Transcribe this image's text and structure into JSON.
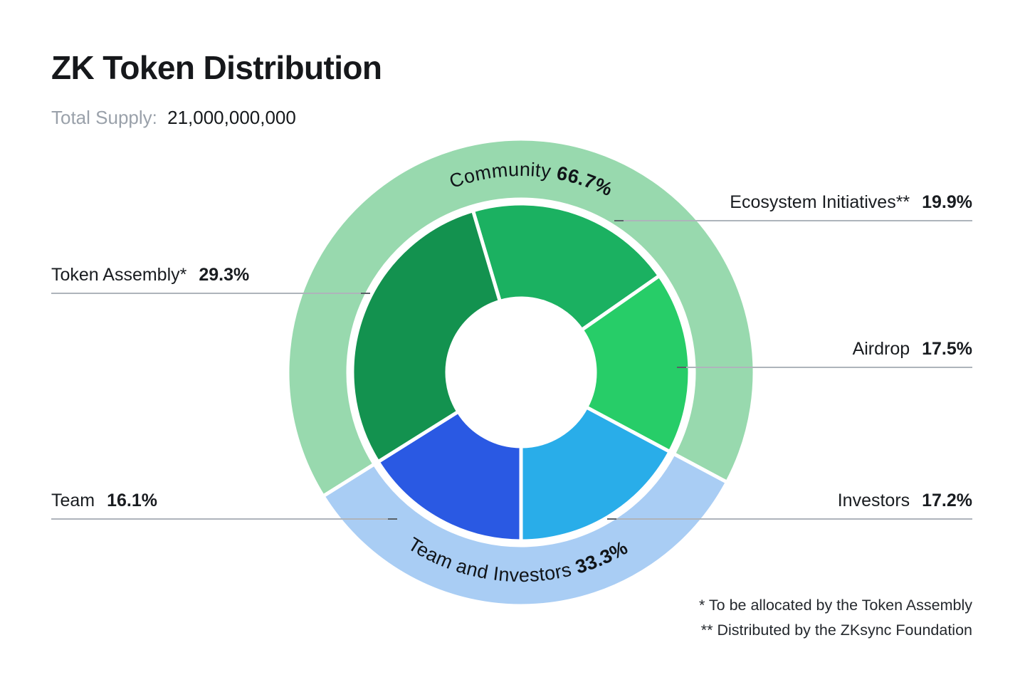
{
  "page": {
    "title": "ZK Token Distribution",
    "total_supply_label": "Total Supply:",
    "total_supply_value": "21,000,000,000"
  },
  "footnotes": {
    "line1": "* To be allocated by the Token Assembly",
    "line2": "** Distributed by the ZKsync Foundation"
  },
  "chart_data": {
    "type": "pie",
    "variant": "two-ring-donut",
    "title": "ZK Token Distribution",
    "total_supply": "21,000,000,000",
    "legend_position": "callout-lines",
    "inner_segments": [
      {
        "label": "Ecosystem Initiatives**",
        "value": 19.9,
        "pct": "19.9%",
        "color": "#1bb161"
      },
      {
        "label": "Airdrop",
        "value": 17.5,
        "pct": "17.5%",
        "color": "#27cd68"
      },
      {
        "label": "Investors",
        "value": 17.2,
        "pct": "17.2%",
        "color": "#29ade9"
      },
      {
        "label": "Team",
        "value": 16.1,
        "pct": "16.1%",
        "color": "#2a59e3"
      },
      {
        "label": "Token Assembly*",
        "value": 29.3,
        "pct": "29.3%",
        "color": "#13924f"
      }
    ],
    "outer_segments": [
      {
        "label": "Community",
        "value": 66.7,
        "pct": "66.7%",
        "color": "#98d9ae"
      },
      {
        "label": "Team and Investors",
        "value": 33.3,
        "pct": "33.3%",
        "color": "#a9cdf4"
      }
    ]
  }
}
